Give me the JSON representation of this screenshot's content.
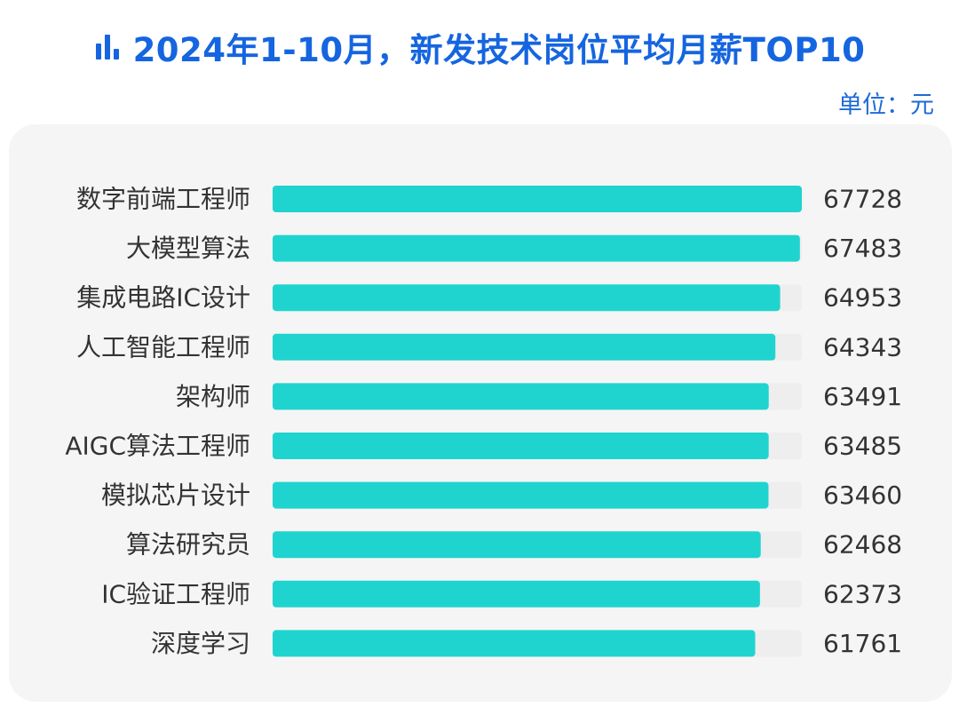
{
  "title": "2024年1-10月，新发技术岗位平均月薪TOP10",
  "unit_label": "单位：元",
  "icon": "bar-chart-icon",
  "colors": {
    "title": "#1565e0",
    "unit": "#1e6ad8",
    "bar": "#1fd4cf",
    "track": "#eeeeee",
    "label": "#333333",
    "value": "#333333"
  },
  "chart_data": {
    "type": "bar",
    "orientation": "horizontal",
    "title": "2024年1-10月，新发技术岗位平均月薪TOP10",
    "unit": "元",
    "categories": [
      "数字前端工程师",
      "大模型算法",
      "集成电路IC设计",
      "人工智能工程师",
      "架构师",
      "AIGC算法工程师",
      "模拟芯片设计",
      "算法研究员",
      "IC验证工程师",
      "深度学习"
    ],
    "values": [
      67728,
      67483,
      64953,
      64343,
      63491,
      63485,
      63460,
      62468,
      62373,
      61761
    ],
    "value_labels": [
      "67728",
      "67483",
      "64953",
      "64343",
      "63491",
      "63485",
      "63460",
      "62468",
      "62373",
      "61761"
    ],
    "xlim": [
      0,
      67728
    ],
    "grid": false,
    "legend": "none"
  }
}
